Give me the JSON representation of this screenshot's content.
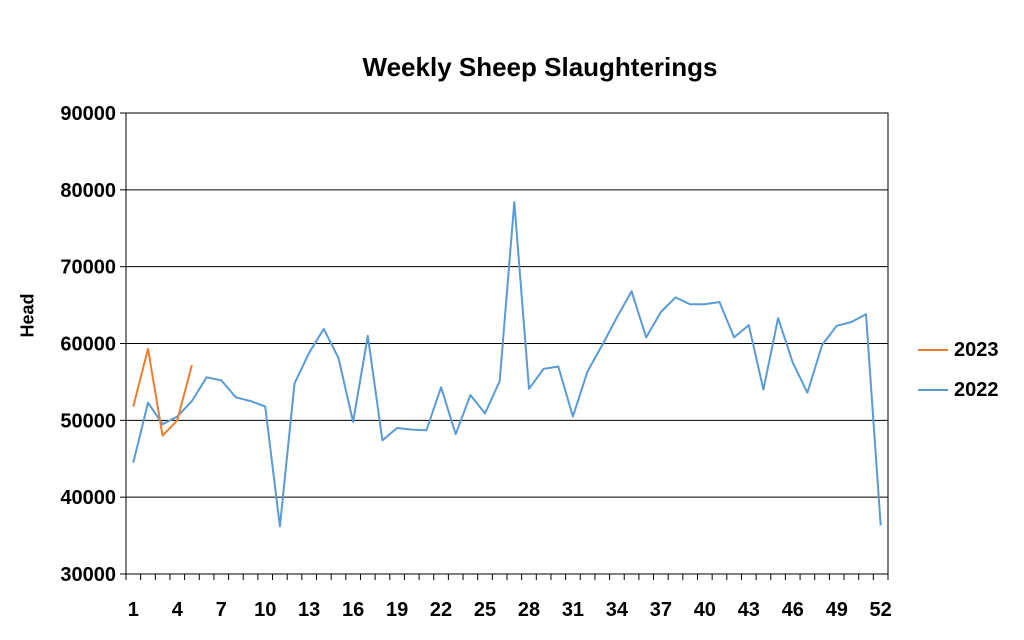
{
  "chart_data": {
    "type": "line",
    "title": "Weekly Sheep Slaughterings",
    "xlabel": "",
    "ylabel": "Head",
    "ylim": [
      30000,
      90000
    ],
    "yticks": [
      30000,
      40000,
      50000,
      60000,
      70000,
      80000,
      90000
    ],
    "xlim": [
      1,
      52
    ],
    "xtick_labels": [
      "1",
      "4",
      "7",
      "10",
      "13",
      "16",
      "19",
      "22",
      "25",
      "28",
      "31",
      "34",
      "37",
      "40",
      "43",
      "46",
      "49",
      "52"
    ],
    "grid": "horizontal",
    "legend_position": "right",
    "series": [
      {
        "name": "2023",
        "color": "#ED7D31",
        "x": [
          1,
          2,
          3,
          4,
          5
        ],
        "values": [
          51800,
          59300,
          48000,
          50000,
          57200
        ]
      },
      {
        "name": "2022",
        "color": "#5B9BD5",
        "x": [
          1,
          2,
          3,
          4,
          5,
          6,
          7,
          8,
          9,
          10,
          11,
          12,
          13,
          14,
          15,
          16,
          17,
          18,
          19,
          20,
          21,
          22,
          23,
          24,
          25,
          26,
          27,
          28,
          29,
          30,
          31,
          32,
          33,
          34,
          35,
          36,
          37,
          38,
          39,
          40,
          41,
          42,
          43,
          44,
          45,
          46,
          47,
          48,
          49,
          50,
          51,
          52
        ],
        "values": [
          44500,
          52300,
          49500,
          50500,
          52500,
          55600,
          55200,
          53000,
          52500,
          51800,
          36200,
          54800,
          58800,
          61900,
          58100,
          49800,
          61000,
          47400,
          49000,
          48800,
          48700,
          54300,
          48200,
          53300,
          50900,
          55100,
          78400,
          54100,
          56700,
          57000,
          50500,
          56400,
          59800,
          63400,
          66800,
          60800,
          64100,
          66000,
          65100,
          65100,
          65400,
          60800,
          62400,
          54000,
          63300,
          57500,
          53600,
          59800,
          62300,
          62800,
          63800,
          36300
        ]
      }
    ]
  }
}
